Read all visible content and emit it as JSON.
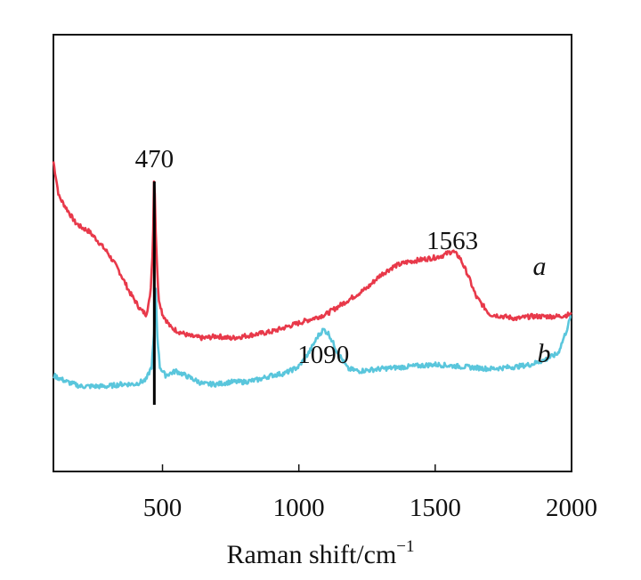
{
  "chart_data": {
    "type": "line",
    "title": "",
    "xlabel_main": "Raman shift/cm",
    "xlabel_superscript": "−1",
    "ylabel": "",
    "xlim": [
      100,
      2000
    ],
    "ylim": [
      0,
      100
    ],
    "x_ticks": [
      500,
      1000,
      1500,
      2000
    ],
    "x_tick_labels": [
      "500",
      "1000",
      "1500",
      "2000"
    ],
    "grid": false,
    "series": [
      {
        "name": "a",
        "label": "a",
        "color": "#e8394a",
        "x": [
          100,
          120,
          150,
          180,
          200,
          230,
          260,
          300,
          340,
          380,
          420,
          440,
          455,
          465,
          470,
          475,
          485,
          500,
          530,
          560,
          600,
          650,
          700,
          750,
          800,
          850,
          900,
          950,
          1000,
          1050,
          1100,
          1150,
          1200,
          1250,
          1300,
          1350,
          1400,
          1450,
          1500,
          1530,
          1563,
          1590,
          1620,
          1650,
          1700,
          1750,
          1800,
          1850,
          1900,
          1950,
          2000
        ],
        "y": [
          71,
          63,
          60,
          57,
          56,
          55,
          53,
          50,
          46,
          41,
          37,
          36,
          40,
          52,
          70,
          55,
          40,
          36,
          33,
          32,
          31,
          30.5,
          31,
          30.5,
          31,
          31.5,
          32,
          33,
          34,
          35,
          36,
          38,
          40,
          42,
          45,
          47,
          48,
          48.5,
          49,
          49.5,
          50.5,
          49,
          45,
          40,
          36,
          35.5,
          35,
          35.5,
          35.5,
          35.5,
          36
        ]
      },
      {
        "name": "b",
        "label": "b",
        "color": "#5ac6dc",
        "x": [
          100,
          150,
          200,
          250,
          300,
          350,
          400,
          440,
          460,
          470,
          475,
          480,
          490,
          510,
          550,
          600,
          650,
          700,
          750,
          800,
          850,
          900,
          950,
          1000,
          1040,
          1070,
          1090,
          1110,
          1140,
          1180,
          1220,
          1300,
          1400,
          1500,
          1600,
          1700,
          1800,
          1850,
          1900,
          1950,
          1980,
          2000
        ],
        "y": [
          22,
          20.5,
          19.5,
          19.5,
          19.5,
          20,
          20,
          21,
          24,
          32,
          42,
          32,
          24,
          22,
          23,
          21.5,
          20,
          20,
          20.5,
          20.5,
          21,
          22,
          22.5,
          24,
          27.5,
          31,
          32.5,
          31.5,
          27.5,
          23.5,
          23,
          23.5,
          24,
          24.5,
          24,
          23.5,
          24,
          24.5,
          25.5,
          27,
          32,
          36
        ]
      }
    ],
    "reference_line": {
      "x": 470,
      "label": "470"
    },
    "annotations": [
      "470",
      "1563",
      "1090"
    ]
  }
}
